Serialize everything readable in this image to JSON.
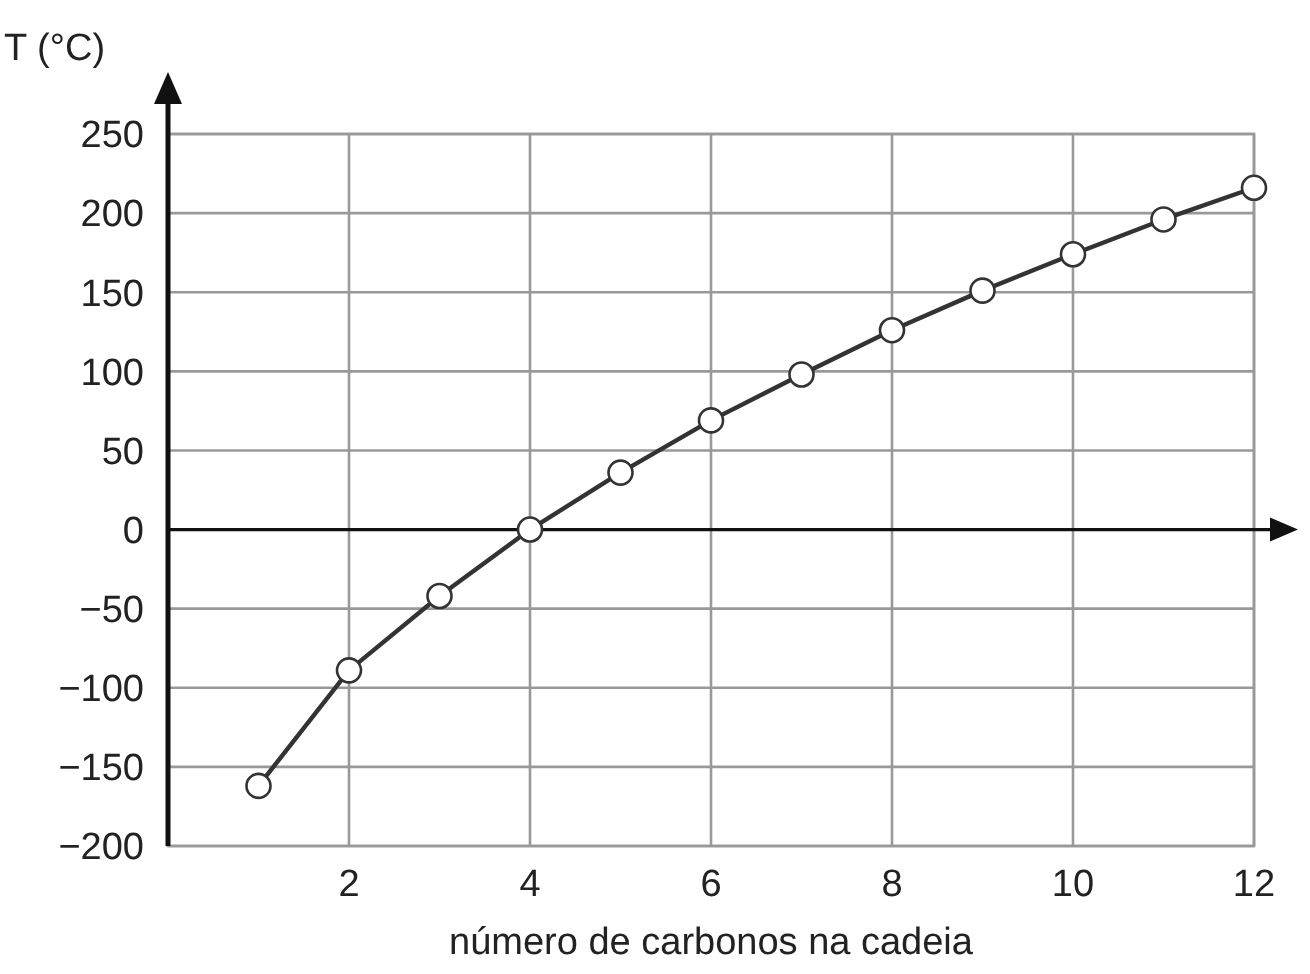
{
  "chart_data": {
    "type": "line",
    "xlabel": "número de carbonos na cadeia",
    "ylabel": "T (°C)",
    "x": [
      1,
      2,
      3,
      4,
      5,
      6,
      7,
      8,
      9,
      10,
      11,
      12
    ],
    "series": [
      {
        "color": "#333333",
        "values": [
          -162,
          -89,
          -42,
          0,
          36,
          69,
          98,
          126,
          151,
          174,
          196,
          216
        ]
      }
    ],
    "xlim": [
      0,
      12
    ],
    "xticks": [
      2,
      4,
      6,
      8,
      10,
      12
    ],
    "ylim": [
      -200,
      250
    ],
    "yticks": [
      {
        "value": -200,
        "label": "−200"
      },
      {
        "value": -150,
        "label": "−150"
      },
      {
        "value": -100,
        "label": "−100"
      },
      {
        "value": -50,
        "label": "−50"
      },
      0,
      50,
      100,
      150,
      200,
      250
    ],
    "grid": true,
    "marker": "circle",
    "line_style": "solid"
  }
}
